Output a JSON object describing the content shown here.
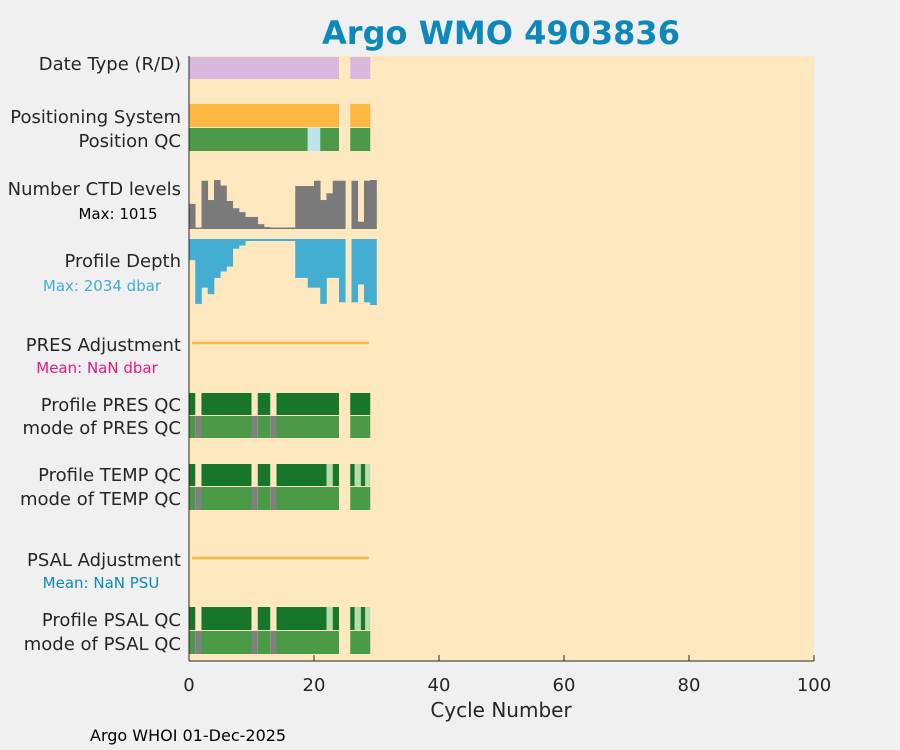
{
  "chart_data": {
    "type": "heatmap",
    "title": "Argo WMO 4903836",
    "xlabel": "Cycle Number",
    "xlim": [
      0,
      100
    ],
    "xticks": [
      0,
      20,
      40,
      60,
      80,
      100
    ],
    "footer": "Argo WHOI 01-Dec-2025",
    "colors": {
      "background": "#fde8c0",
      "title": "#0e88bb",
      "date_type": "#d8b8dc",
      "positioning": "#fbb843",
      "qc_good": "#4a9a48",
      "qc_dark": "#17762a",
      "qc_light": "#bde3eb",
      "qc_pale": "#b6dcaa",
      "qc_gray": "#808080",
      "ctd": "#7a7a7a",
      "depth": "#43aed2",
      "adjustment": "#fbb843",
      "mean_pres": "#e3197e",
      "mean_psal": "#0e88bb"
    },
    "missing_cycles": [
      25
    ],
    "rows": {
      "date_type": {
        "label": "Date Type (R/D)",
        "segments": [
          {
            "from": 0,
            "to": 24,
            "color": "date_type"
          },
          {
            "from": 25.8,
            "to": 29,
            "color": "date_type"
          }
        ]
      },
      "positioning_system": {
        "label": "Positioning System",
        "segments": [
          {
            "from": 0,
            "to": 24,
            "color": "positioning"
          },
          {
            "from": 25.8,
            "to": 29,
            "color": "positioning"
          }
        ]
      },
      "position_qc": {
        "label": "Position QC",
        "segments": [
          {
            "from": 0,
            "to": 19,
            "color": "qc_good"
          },
          {
            "from": 19,
            "to": 21,
            "color": "qc_light"
          },
          {
            "from": 21,
            "to": 24,
            "color": "qc_good"
          },
          {
            "from": 25.8,
            "to": 29,
            "color": "qc_good"
          }
        ]
      },
      "ctd_levels": {
        "label": "Number CTD levels",
        "max_label": "Max: 1015",
        "max": 1015,
        "values": [
          520,
          20,
          1000,
          600,
          1015,
          900,
          580,
          430,
          350,
          250,
          250,
          100,
          40,
          20,
          20,
          0,
          0,
          890,
          890,
          890,
          1000,
          600,
          740,
          1000,
          1000,
          null,
          1000,
          150,
          1000,
          1015
        ]
      },
      "profile_depth": {
        "label": "Profile Depth",
        "max_label": "Max: 2034 dbar",
        "max": 2034,
        "values": [
          650,
          2000,
          1500,
          1700,
          1200,
          1000,
          850,
          300,
          200,
          0,
          0,
          0,
          60,
          60,
          0,
          0,
          0,
          1200,
          1200,
          1500,
          1500,
          2000,
          1200,
          1200,
          1950,
          null,
          1950,
          1400,
          1950,
          2034
        ]
      },
      "pres_adjustment": {
        "label": "PRES Adjustment",
        "mean_label": "Mean:  NaN dbar",
        "from": 0.5,
        "to": 28.8
      },
      "profile_pres_qc": {
        "label": "Profile PRES QC",
        "segments": [
          {
            "from": 0,
            "to": 1,
            "color": "qc_dark"
          },
          {
            "from": 2,
            "to": 10,
            "color": "qc_dark"
          },
          {
            "from": 11,
            "to": 13,
            "color": "qc_dark"
          },
          {
            "from": 14,
            "to": 24,
            "color": "qc_dark"
          },
          {
            "from": 25.8,
            "to": 29,
            "color": "qc_dark"
          }
        ]
      },
      "mode_pres_qc": {
        "label": "mode of PRES QC",
        "segments": [
          {
            "from": 0,
            "to": 1,
            "color": "qc_good"
          },
          {
            "from": 1,
            "to": 2,
            "color": "qc_gray"
          },
          {
            "from": 2,
            "to": 10,
            "color": "qc_good"
          },
          {
            "from": 10,
            "to": 11,
            "color": "qc_gray"
          },
          {
            "from": 11,
            "to": 13,
            "color": "qc_good"
          },
          {
            "from": 13,
            "to": 14,
            "color": "qc_gray"
          },
          {
            "from": 14,
            "to": 24,
            "color": "qc_good"
          },
          {
            "from": 25.8,
            "to": 29,
            "color": "qc_good"
          }
        ]
      },
      "profile_temp_qc": {
        "label": "Profile TEMP QC",
        "segments": [
          {
            "from": 0,
            "to": 1,
            "color": "qc_dark"
          },
          {
            "from": 2,
            "to": 10,
            "color": "qc_dark"
          },
          {
            "from": 11,
            "to": 13,
            "color": "qc_dark"
          },
          {
            "from": 14,
            "to": 22,
            "color": "qc_dark"
          },
          {
            "from": 22,
            "to": 23,
            "color": "qc_pale"
          },
          {
            "from": 23,
            "to": 24,
            "color": "qc_dark"
          },
          {
            "from": 25.8,
            "to": 26.5,
            "color": "qc_dark"
          },
          {
            "from": 26.5,
            "to": 27.5,
            "color": "qc_pale"
          },
          {
            "from": 27.5,
            "to": 28.2,
            "color": "qc_dark"
          },
          {
            "from": 28.2,
            "to": 29,
            "color": "qc_pale"
          }
        ]
      },
      "mode_temp_qc": {
        "label": "mode of TEMP QC",
        "segments": [
          {
            "from": 0,
            "to": 1,
            "color": "qc_good"
          },
          {
            "from": 1,
            "to": 2,
            "color": "qc_gray"
          },
          {
            "from": 2,
            "to": 10,
            "color": "qc_good"
          },
          {
            "from": 10,
            "to": 11,
            "color": "qc_gray"
          },
          {
            "from": 11,
            "to": 13,
            "color": "qc_good"
          },
          {
            "from": 13,
            "to": 14,
            "color": "qc_gray"
          },
          {
            "from": 14,
            "to": 24,
            "color": "qc_good"
          },
          {
            "from": 25.8,
            "to": 29,
            "color": "qc_good"
          }
        ]
      },
      "psal_adjustment": {
        "label": "PSAL Adjustment",
        "mean_label": "Mean:  NaN PSU",
        "from": 0.5,
        "to": 28.8
      },
      "profile_psal_qc": {
        "label": "Profile PSAL QC",
        "segments": [
          {
            "from": 0,
            "to": 1,
            "color": "qc_dark"
          },
          {
            "from": 2,
            "to": 10,
            "color": "qc_dark"
          },
          {
            "from": 11,
            "to": 13,
            "color": "qc_dark"
          },
          {
            "from": 14,
            "to": 22,
            "color": "qc_dark"
          },
          {
            "from": 22,
            "to": 23,
            "color": "qc_pale"
          },
          {
            "from": 23,
            "to": 24,
            "color": "qc_dark"
          },
          {
            "from": 25.8,
            "to": 26.5,
            "color": "qc_dark"
          },
          {
            "from": 26.5,
            "to": 27.5,
            "color": "qc_pale"
          },
          {
            "from": 27.5,
            "to": 28.2,
            "color": "qc_dark"
          },
          {
            "from": 28.2,
            "to": 29,
            "color": "qc_pale"
          }
        ]
      },
      "mode_psal_qc": {
        "label": "mode of PSAL QC",
        "segments": [
          {
            "from": 0,
            "to": 1,
            "color": "qc_good"
          },
          {
            "from": 1,
            "to": 2,
            "color": "qc_gray"
          },
          {
            "from": 2,
            "to": 10,
            "color": "qc_good"
          },
          {
            "from": 10,
            "to": 11,
            "color": "qc_gray"
          },
          {
            "from": 11,
            "to": 13,
            "color": "qc_good"
          },
          {
            "from": 13,
            "to": 14,
            "color": "qc_gray"
          },
          {
            "from": 14,
            "to": 24,
            "color": "qc_good"
          },
          {
            "from": 25.8,
            "to": 29,
            "color": "qc_good"
          }
        ]
      }
    }
  }
}
